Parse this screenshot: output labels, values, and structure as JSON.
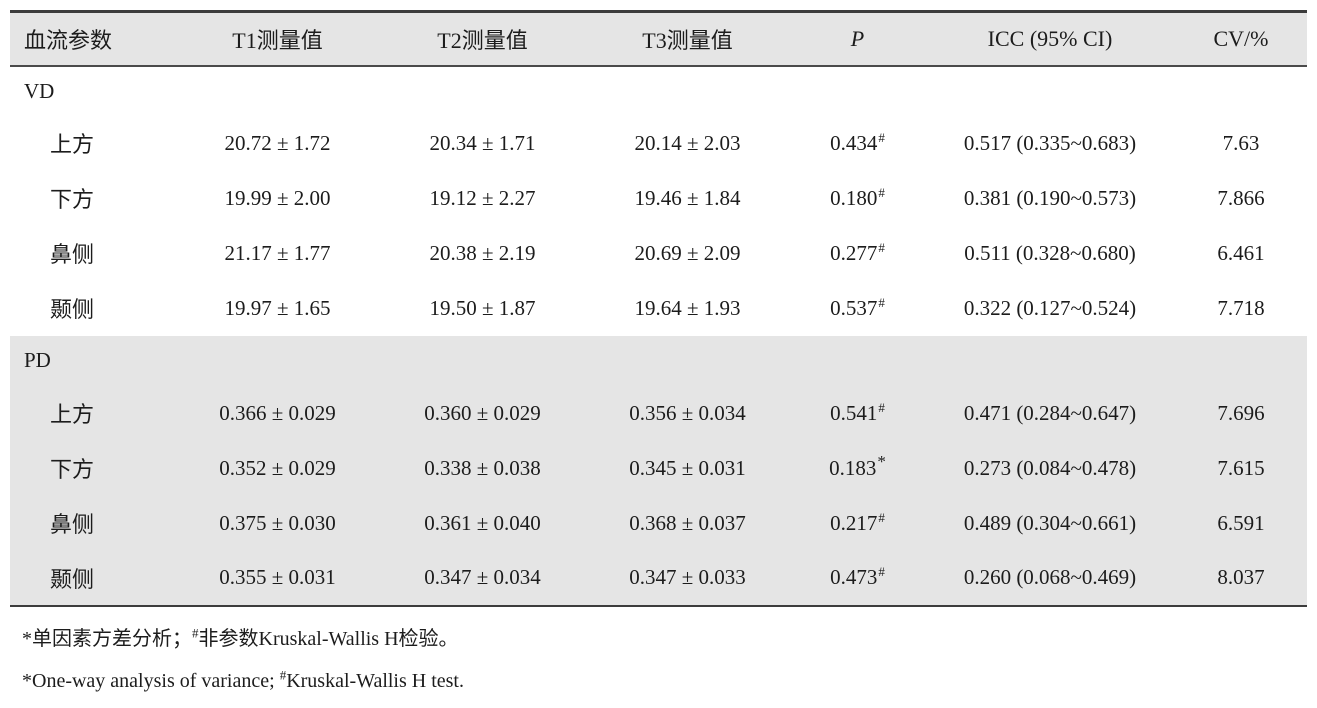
{
  "colors": {
    "band_gray": "#e5e5e5",
    "border_dark": "#3c3c3c",
    "text": "#1c1c1c"
  },
  "table": {
    "header": {
      "param": "血流参数",
      "t1": "T1测量值",
      "t2": "T2测量值",
      "t3": "T3测量值",
      "p": "P",
      "icc": "ICC (95% CI)",
      "cv": "CV/%"
    },
    "sections": [
      {
        "label": "VD",
        "rows": [
          {
            "label": "上方",
            "t1": "20.72 ± 1.72",
            "t2": "20.34 ± 1.71",
            "t3": "20.14 ± 2.03",
            "p": "0.434",
            "p_mark": "#",
            "icc": "0.517 (0.335~0.683)",
            "cv": "7.63"
          },
          {
            "label": "下方",
            "t1": "19.99 ± 2.00",
            "t2": "19.12 ± 2.27",
            "t3": "19.46 ± 1.84",
            "p": "0.180",
            "p_mark": "#",
            "icc": "0.381 (0.190~0.573)",
            "cv": "7.866"
          },
          {
            "label": "鼻侧",
            "t1": "21.17 ± 1.77",
            "t2": "20.38 ± 2.19",
            "t3": "20.69 ± 2.09",
            "p": "0.277",
            "p_mark": "#",
            "icc": "0.511 (0.328~0.680)",
            "cv": "6.461"
          },
          {
            "label": "颞侧",
            "t1": "19.97 ± 1.65",
            "t2": "19.50 ± 1.87",
            "t3": "19.64 ± 1.93",
            "p": "0.537",
            "p_mark": "#",
            "icc": "0.322 (0.127~0.524)",
            "cv": "7.718"
          }
        ]
      },
      {
        "label": "PD",
        "rows": [
          {
            "label": "上方",
            "t1": "0.366 ± 0.029",
            "t2": "0.360 ± 0.029",
            "t3": "0.356 ± 0.034",
            "p": "0.541",
            "p_mark": "#",
            "icc": "0.471 (0.284~0.647)",
            "cv": "7.696"
          },
          {
            "label": "下方",
            "t1": "0.352 ± 0.029",
            "t2": "0.338 ± 0.038",
            "t3": "0.345 ± 0.031",
            "p": "0.183",
            "p_mark": "*",
            "icc": "0.273 (0.084~0.478)",
            "cv": "7.615"
          },
          {
            "label": "鼻侧",
            "t1": "0.375 ± 0.030",
            "t2": "0.361 ± 0.040",
            "t3": "0.368 ± 0.037",
            "p": "0.217",
            "p_mark": "#",
            "icc": "0.489 (0.304~0.661)",
            "cv": "6.591"
          },
          {
            "label": "颞侧",
            "t1": "0.355 ± 0.031",
            "t2": "0.347 ± 0.034",
            "t3": "0.347 ± 0.033",
            "p": "0.473",
            "p_mark": "#",
            "icc": "0.260 (0.068~0.469)",
            "cv": "8.037"
          }
        ]
      }
    ]
  },
  "footnotes": {
    "zh": {
      "pre": "*单因素方差分析；",
      "sup": "#",
      "post": "非参数Kruskal-Wallis H检验。"
    },
    "en": {
      "pre": "*One-way analysis of variance; ",
      "sup": "#",
      "post": "Kruskal-Wallis H test."
    }
  }
}
